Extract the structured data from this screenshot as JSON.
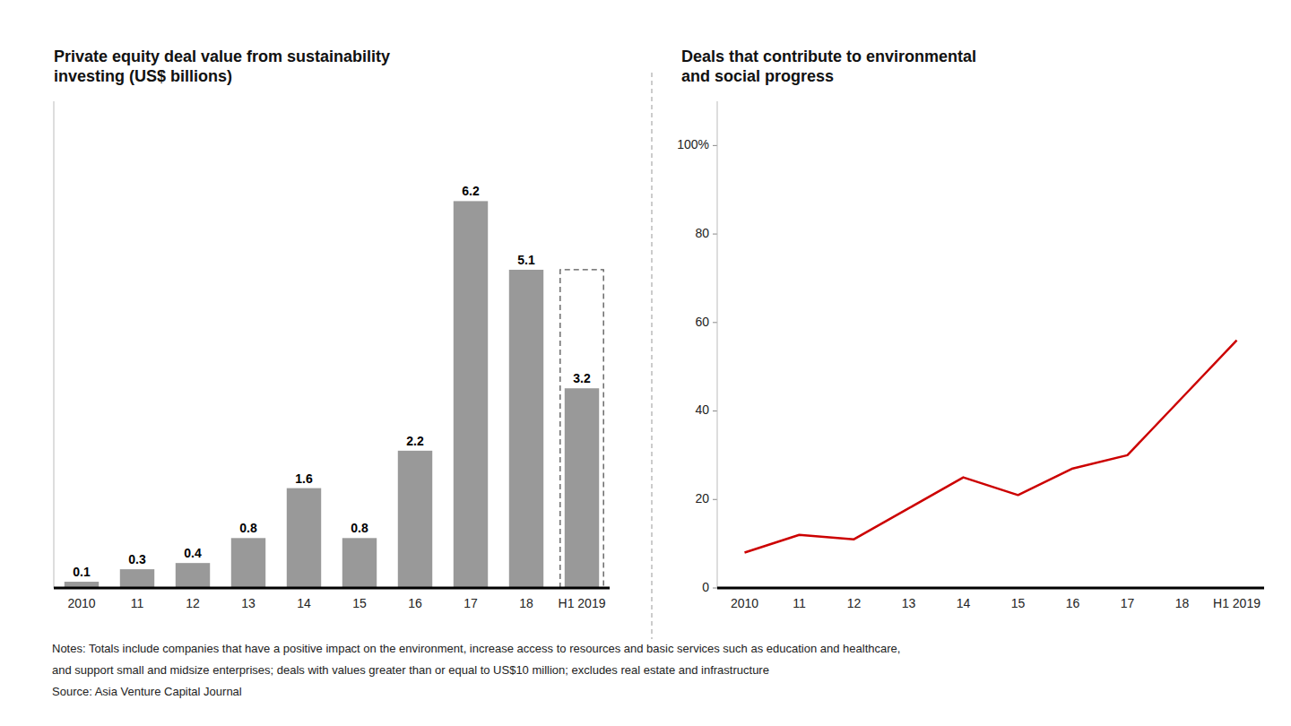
{
  "chart_data": [
    {
      "type": "bar",
      "title": "Private equity deal value from sustainability\ninvesting (US$ billions)",
      "categories": [
        "2010",
        "11",
        "12",
        "13",
        "14",
        "15",
        "16",
        "17",
        "18",
        "H1 2019"
      ],
      "values": [
        0.1,
        0.3,
        0.4,
        0.8,
        1.6,
        0.8,
        2.2,
        6.2,
        5.1,
        3.2
      ],
      "color": "#999999",
      "ylim": [
        0,
        7.8
      ],
      "grid": false,
      "data_labels": true,
      "tick_labels": "x",
      "reference_box": {
        "category": "H1 2019",
        "top": 5.1,
        "line_style": "dashed"
      }
    },
    {
      "type": "line",
      "title": "Deals that contribute to environmental\nand social progress",
      "categories": [
        "2010",
        "11",
        "12",
        "13",
        "14",
        "15",
        "16",
        "17",
        "18",
        "H1 2019"
      ],
      "values": [
        8,
        12,
        11,
        18,
        25,
        21,
        27,
        30,
        43,
        56
      ],
      "color": "#cc0000",
      "ylim": [
        0,
        110
      ],
      "yticks": [
        0,
        20,
        40,
        60,
        80,
        {
          "value": 100,
          "label": "100%"
        }
      ],
      "grid": false
    }
  ],
  "notes": [
    "Notes: Totals include companies that have a positive impact on the environment, increase access to resources and basic services such as education and healthcare,",
    "and support small and midsize enterprises; deals with values greater than or equal to US$10 million; excludes real estate and infrastructure",
    "Source: Asia Venture Capital Journal"
  ]
}
